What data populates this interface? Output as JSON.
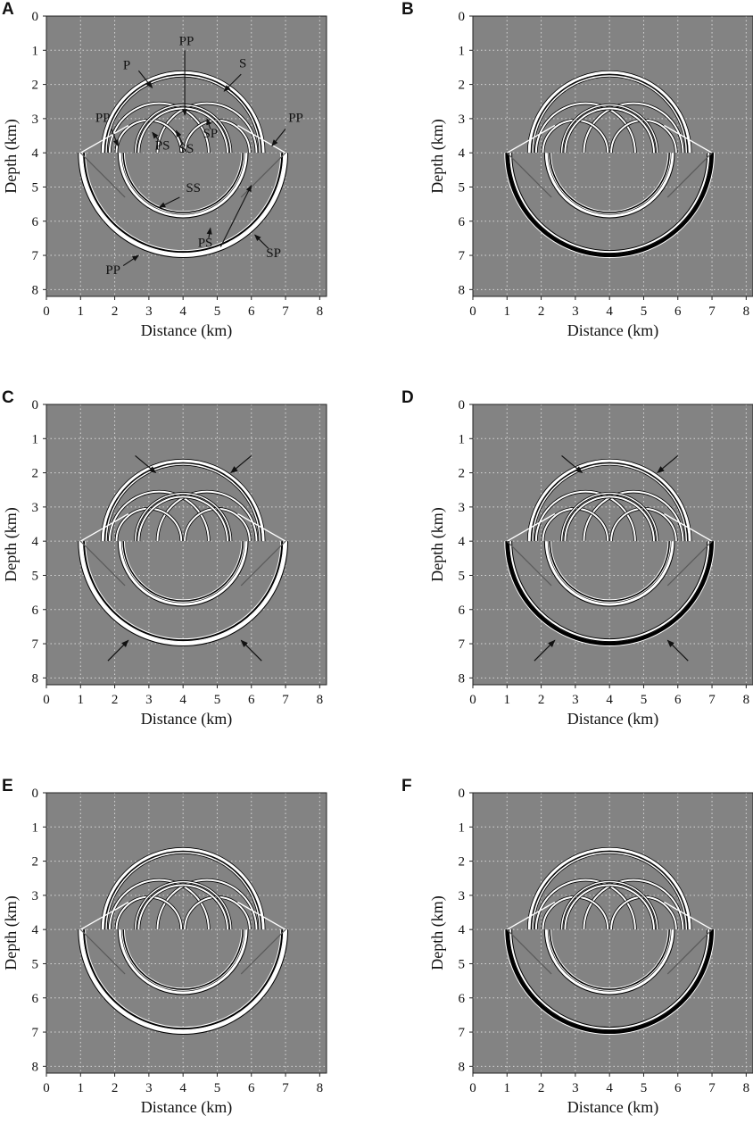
{
  "figure": {
    "panels": [
      {
        "letter": "A",
        "annotated": true
      },
      {
        "letter": "B",
        "annotated": false
      },
      {
        "letter": "C",
        "arrows": true
      },
      {
        "letter": "D",
        "arrows": true
      },
      {
        "letter": "E",
        "annotated": false
      },
      {
        "letter": "F",
        "annotated": false
      }
    ],
    "x_label": "Distance (km)",
    "y_label": "Depth (km)",
    "x_ticks": [
      "0",
      "1",
      "2",
      "3",
      "4",
      "5",
      "6",
      "7",
      "8"
    ],
    "y_ticks": [
      "0",
      "1",
      "2",
      "3",
      "4",
      "5",
      "6",
      "7",
      "8"
    ],
    "x_range_km": [
      0,
      8.2
    ],
    "y_range_km": [
      0,
      8.2
    ],
    "grid": "dotted",
    "annotations_A": [
      "P",
      "PP",
      "S",
      "PP",
      "PP",
      "SP",
      "PS",
      "SS",
      "SS",
      "PS",
      "SP",
      "PP"
    ]
  },
  "colors": {
    "background": "#ffffff",
    "plot_bg": "#838383",
    "grid": "#d8d8d8",
    "wave_light": "#ffffff",
    "wave_dark": "#000000"
  }
}
